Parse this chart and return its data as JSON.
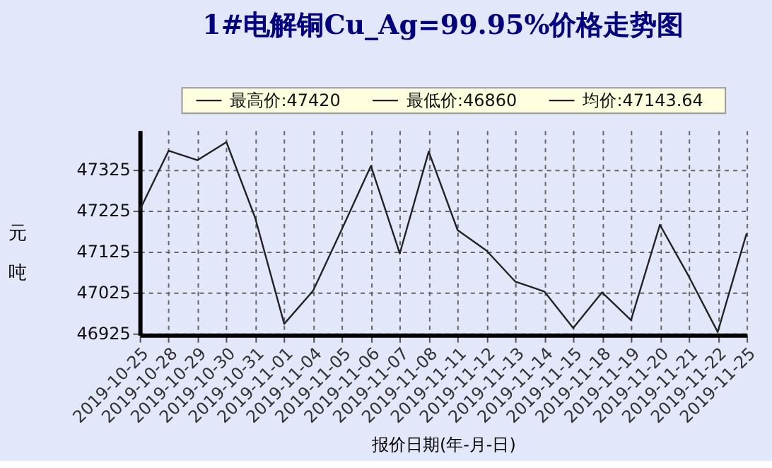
{
  "chart_data": {
    "type": "line",
    "title": "1#电解铜Cu_Ag=99.95%价格走势图",
    "xlabel": "报价日期(年-月-日)",
    "ylabel": "元吨",
    "categories": [
      "2019-10-25",
      "2019-10-28",
      "2019-10-29",
      "2019-10-30",
      "2019-10-31",
      "2019-11-01",
      "2019-11-04",
      "2019-11-05",
      "2019-11-06",
      "2019-11-07",
      "2019-11-08",
      "2019-11-11",
      "2019-11-12",
      "2019-11-13",
      "2019-11-14",
      "2019-11-15",
      "2019-11-18",
      "2019-11-19",
      "2019-11-20",
      "2019-11-21",
      "2019-11-22",
      "2019-11-25"
    ],
    "series": [
      {
        "color": "#222222",
        "values": [
          47225,
          47370,
          47347,
          47391,
          47205,
          46947,
          47028,
          47179,
          47333,
          47119,
          47368,
          47176,
          47126,
          47050,
          47026,
          46937,
          47024,
          46956,
          47189,
          47063,
          46927,
          47168
        ]
      }
    ],
    "ylim": [
      46920,
      47420
    ],
    "yticks": [
      46925,
      47025,
      47125,
      47225,
      47325
    ],
    "grid": true,
    "marker": "none",
    "line_style": "solid",
    "annotations": [
      "最高价:47420",
      "最低价:46860",
      "均价:47143.64"
    ]
  }
}
